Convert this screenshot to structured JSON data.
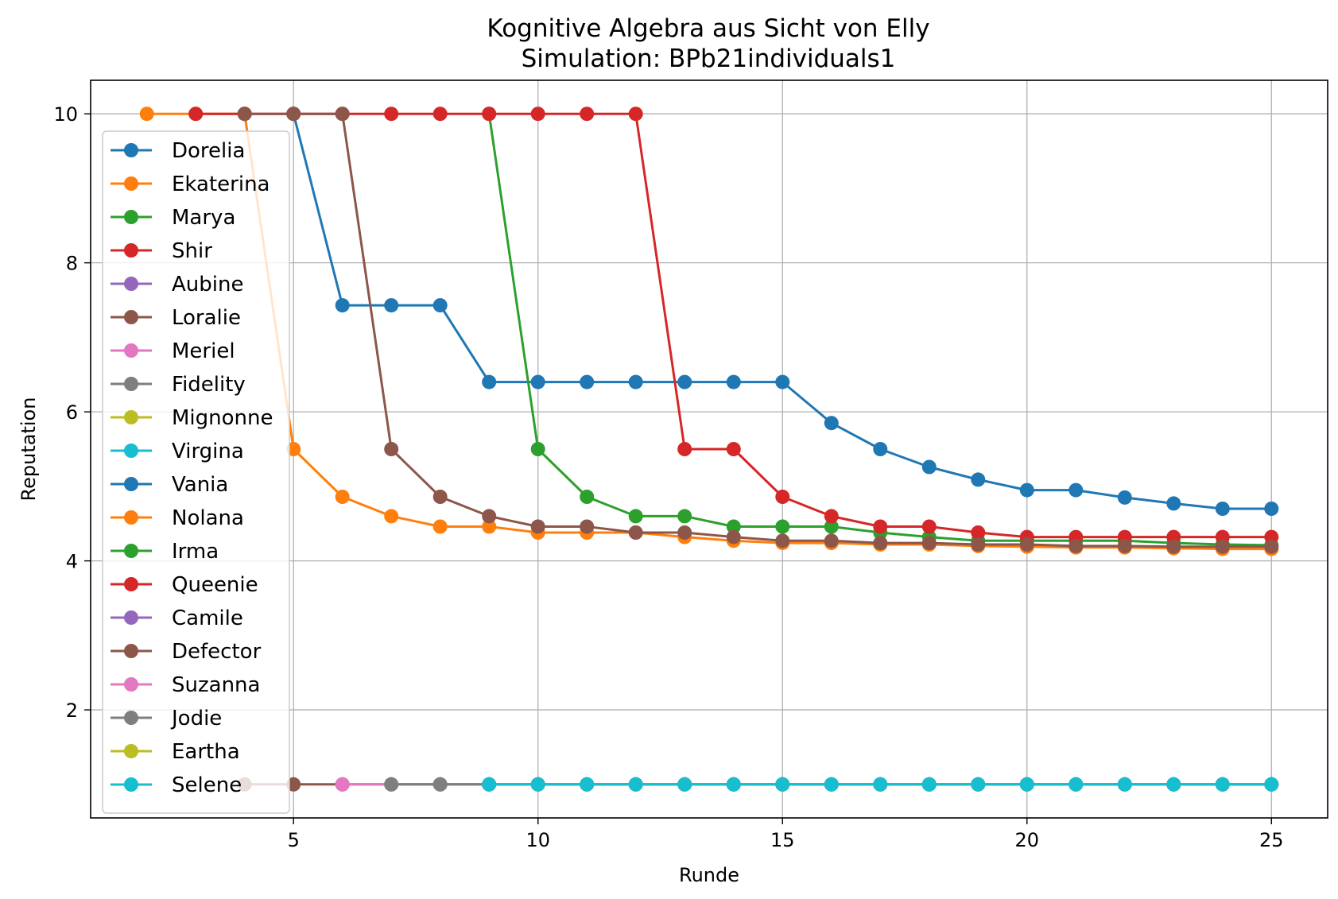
{
  "chart_data": {
    "type": "line",
    "title": "Kognitive Algebra aus Sicht von Elly",
    "subtitle": "Simulation: BPb21individuals1",
    "xlabel": "Runde",
    "ylabel": "Reputation",
    "xlim": [
      0.85,
      26.15
    ],
    "ylim": [
      0.55,
      10.45
    ],
    "xticks": [
      5,
      10,
      15,
      20,
      25
    ],
    "yticks": [
      2,
      4,
      6,
      8,
      10
    ],
    "grid": true,
    "legend_position": "upper-left",
    "series": [
      {
        "name": "Dorelia",
        "color": "#1f77b4",
        "x": [
          5,
          6,
          7,
          8,
          9,
          10,
          11,
          12,
          13,
          14,
          15,
          16,
          17,
          18,
          19,
          20,
          21,
          22,
          23,
          24,
          25
        ],
        "y": [
          10,
          7.43,
          7.43,
          7.43,
          6.4,
          6.4,
          6.4,
          6.4,
          6.4,
          6.4,
          6.4,
          5.85,
          5.5,
          5.26,
          5.09,
          4.95,
          4.95,
          4.85,
          4.77,
          4.7,
          4.7
        ]
      },
      {
        "name": "Ekaterina",
        "color": "#ff7f0e",
        "x": [
          2,
          3,
          4,
          5,
          6,
          7,
          8,
          9,
          10,
          11,
          12,
          13,
          14,
          15,
          16,
          17,
          18,
          19,
          20,
          21,
          22,
          23,
          24,
          25
        ],
        "y": [
          10,
          10,
          10,
          5.5,
          4.86,
          4.6,
          4.46,
          4.46,
          4.38,
          4.38,
          4.38,
          4.32,
          4.27,
          4.24,
          4.24,
          4.22,
          4.22,
          4.2,
          4.19,
          4.18,
          4.18,
          4.17,
          4.16,
          4.16
        ]
      },
      {
        "name": "Marya",
        "color": "#2ca02c",
        "x": [
          9,
          10,
          11,
          12,
          13,
          14,
          15,
          16,
          17,
          18,
          19,
          20,
          21,
          22,
          23,
          24,
          25
        ],
        "y": [
          10,
          5.5,
          4.86,
          4.6,
          4.6,
          4.46,
          4.46,
          4.46,
          4.38,
          4.32,
          4.27,
          4.27,
          4.27,
          4.27,
          4.24,
          4.22,
          4.21
        ]
      },
      {
        "name": "Shir",
        "color": "#d62728",
        "x": [
          3,
          4,
          5,
          6,
          7,
          8,
          9,
          10,
          11,
          12,
          13,
          14,
          15,
          16,
          17,
          18,
          19,
          20,
          21,
          22,
          23,
          24,
          25
        ],
        "y": [
          10,
          10,
          10,
          10,
          10,
          10,
          10,
          10,
          10,
          10,
          5.5,
          5.5,
          4.86,
          4.6,
          4.46,
          4.46,
          4.38,
          4.32,
          4.32,
          4.32,
          4.32,
          4.32,
          4.32
        ]
      },
      {
        "name": "Aubine",
        "color": "#9467bd",
        "x": [],
        "y": []
      },
      {
        "name": "Loralie",
        "color": "#8c564b",
        "x": [
          4,
          5,
          6,
          7,
          8,
          9,
          10,
          11,
          12,
          13,
          14,
          15,
          16,
          17,
          18,
          19,
          20,
          21,
          22,
          23,
          24,
          25
        ],
        "y": [
          10,
          10,
          10,
          5.5,
          4.86,
          4.6,
          4.46,
          4.46,
          4.38,
          4.38,
          4.32,
          4.27,
          4.27,
          4.24,
          4.24,
          4.22,
          4.22,
          4.2,
          4.2,
          4.19,
          4.19,
          4.19
        ]
      },
      {
        "name": "Meriel",
        "color": "#e377c2",
        "x": [],
        "y": []
      },
      {
        "name": "Fidelity",
        "color": "#7f7f7f",
        "x": [],
        "y": []
      },
      {
        "name": "Mignonne",
        "color": "#bcbd22",
        "x": [],
        "y": []
      },
      {
        "name": "Virgina",
        "color": "#17becf",
        "x": [],
        "y": []
      },
      {
        "name": "Vania",
        "color": "#1f77b4",
        "x": [],
        "y": []
      },
      {
        "name": "Nolana",
        "color": "#ff7f0e",
        "x": [],
        "y": []
      },
      {
        "name": "Irma",
        "color": "#2ca02c",
        "x": [],
        "y": []
      },
      {
        "name": "Queenie",
        "color": "#d62728",
        "x": [],
        "y": []
      },
      {
        "name": "Camile",
        "color": "#9467bd",
        "x": [],
        "y": []
      },
      {
        "name": "Defector",
        "color": "#8c564b",
        "x": [
          4,
          5,
          6,
          7,
          8,
          9,
          10,
          11,
          12,
          13,
          14,
          15,
          16,
          17,
          18,
          19,
          20,
          21,
          22,
          23,
          24,
          25
        ],
        "y": [
          1,
          1,
          1,
          1,
          1,
          1,
          1,
          1,
          1,
          1,
          1,
          1,
          1,
          1,
          1,
          1,
          1,
          1,
          1,
          1,
          1,
          1
        ]
      },
      {
        "name": "Suzanna",
        "color": "#e377c2",
        "x": [
          6,
          7,
          8,
          9,
          10,
          11,
          12,
          13,
          14,
          15,
          16,
          17,
          18,
          19,
          20,
          21,
          22,
          23,
          24,
          25
        ],
        "y": [
          1,
          1,
          1,
          1,
          1,
          1,
          1,
          1,
          1,
          1,
          1,
          1,
          1,
          1,
          1,
          1,
          1,
          1,
          1,
          1
        ]
      },
      {
        "name": "Jodie",
        "color": "#7f7f7f",
        "x": [
          7,
          8,
          9,
          10,
          11,
          12,
          13,
          14,
          15,
          16,
          17,
          18,
          19,
          20,
          21,
          22,
          23,
          24,
          25
        ],
        "y": [
          1,
          1,
          1,
          1,
          1,
          1,
          1,
          1,
          1,
          1,
          1,
          1,
          1,
          1,
          1,
          1,
          1,
          1,
          1
        ]
      },
      {
        "name": "Eartha",
        "color": "#bcbd22",
        "x": [],
        "y": []
      },
      {
        "name": "Selene",
        "color": "#17becf",
        "x": [
          9,
          10,
          11,
          12,
          13,
          14,
          15,
          16,
          17,
          18,
          19,
          20,
          21,
          22,
          23,
          24,
          25
        ],
        "y": [
          1,
          1,
          1,
          1,
          1,
          1,
          1,
          1,
          1,
          1,
          1,
          1,
          1,
          1,
          1,
          1,
          1
        ]
      }
    ]
  }
}
